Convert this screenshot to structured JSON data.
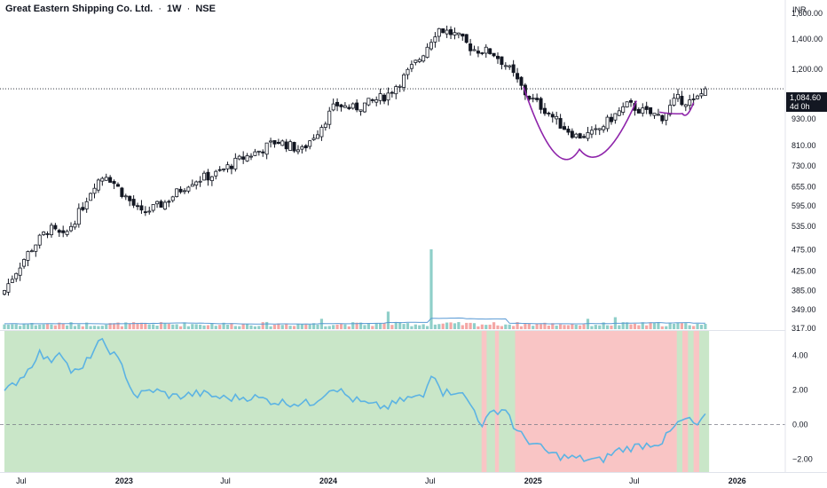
{
  "header": {
    "symbol": "Great Eastern Shipping Co. Ltd.",
    "interval": "1W",
    "exchange": "NSE",
    "separator": "·"
  },
  "price_axis": {
    "currency": "INR",
    "labels": [
      "1,600.00",
      "1,400.00",
      "1,200.00",
      "930.00",
      "810.00",
      "730.00",
      "655.00",
      "595.00",
      "535.00",
      "475.00",
      "425.00",
      "385.00",
      "349.00",
      "317.00"
    ],
    "current_price": "1,084.60",
    "countdown": "4d 0h"
  },
  "oscillator_axis": {
    "labels": [
      "4.00",
      "2.00",
      "0.00",
      "−2.00"
    ]
  },
  "time_axis": {
    "labels": [
      "Jul",
      "2023",
      "Jul",
      "2024",
      "Jul",
      "2025",
      "Jul",
      "2026"
    ]
  },
  "colors": {
    "up": "#26a69a",
    "down": "#ef5350",
    "candle": "#131722",
    "volume_up": "#8fcfc9",
    "volume_down": "#f4a7a5",
    "volume_ma": "#5b9bd5",
    "oscillator_line": "#5cb3e3",
    "positive_zone": "#c9e6c8",
    "negative_zone": "#f9c5c5",
    "pattern": "#8e24aa"
  },
  "chart_data": [
    {
      "type": "candlestick",
      "title": "Great Eastern Shipping Co. Ltd. · 1W · NSE",
      "scale": "log",
      "ylim": [
        317,
        1650
      ],
      "x_range": [
        "2022-06",
        "2026-03"
      ],
      "close_anchors": [
        [
          "2022-06-01",
          385
        ],
        [
          "2022-07-15",
          470
        ],
        [
          "2022-08-20",
          530
        ],
        [
          "2022-09-15",
          505
        ],
        [
          "2022-10-15",
          580
        ],
        [
          "2022-11-10",
          670
        ],
        [
          "2022-11-30",
          700
        ],
        [
          "2022-12-31",
          630
        ],
        [
          "2023-02-01",
          570
        ],
        [
          "2023-03-15",
          605
        ],
        [
          "2023-05-01",
          675
        ],
        [
          "2023-06-15",
          700
        ],
        [
          "2023-08-01",
          760
        ],
        [
          "2023-09-01",
          790
        ],
        [
          "2023-10-01",
          830
        ],
        [
          "2023-11-15",
          790
        ],
        [
          "2023-12-15",
          880
        ],
        [
          "2024-01-15",
          1000
        ],
        [
          "2024-02-15",
          980
        ],
        [
          "2024-03-15",
          1010
        ],
        [
          "2024-04-15",
          1050
        ],
        [
          "2024-05-15",
          1150
        ],
        [
          "2024-06-15",
          1280
        ],
        [
          "2024-07-15",
          1480
        ],
        [
          "2024-08-15",
          1430
        ],
        [
          "2024-09-15",
          1330
        ],
        [
          "2024-10-20",
          1310
        ],
        [
          "2024-11-15",
          1220
        ],
        [
          "2024-12-20",
          1050
        ],
        [
          "2025-01-20",
          980
        ],
        [
          "2025-02-20",
          900
        ],
        [
          "2025-03-20",
          850
        ],
        [
          "2025-04-20",
          860
        ],
        [
          "2025-05-20",
          930
        ],
        [
          "2025-06-20",
          1000
        ],
        [
          "2025-07-20",
          960
        ],
        [
          "2025-08-20",
          940
        ],
        [
          "2025-09-15",
          1030
        ],
        [
          "2025-10-15",
          1010
        ],
        [
          "2025-11-07",
          1084.6
        ]
      ],
      "last_price": 1084.6
    },
    {
      "type": "bar",
      "name": "Volume",
      "spikes": [
        [
          "2024-07-05",
          10
        ],
        [
          "2024-04-20",
          2.2
        ],
        [
          "2023-12-20",
          1.3
        ],
        [
          "2025-05-30",
          1.5
        ],
        [
          "2025-04-10",
          1.3
        ]
      ],
      "note": "relative weekly volume with moving average"
    },
    {
      "type": "line",
      "ylim": [
        -2.7,
        5.3
      ],
      "ticks": [
        4,
        2,
        0,
        -2
      ],
      "zero_line": true,
      "anchors": [
        [
          "2022-06-01",
          1.8
        ],
        [
          "2022-07-15",
          3.2
        ],
        [
          "2022-08-01",
          4.2
        ],
        [
          "2022-08-20",
          3.6
        ],
        [
          "2022-09-10",
          4.4
        ],
        [
          "2022-09-25",
          3.1
        ],
        [
          "2022-10-15",
          3.0
        ],
        [
          "2022-11-05",
          4.2
        ],
        [
          "2022-11-20",
          4.8
        ],
        [
          "2022-12-10",
          4.2
        ],
        [
          "2022-12-31",
          3.2
        ],
        [
          "2023-01-20",
          1.6
        ],
        [
          "2023-02-20",
          2.0
        ],
        [
          "2023-04-01",
          1.6
        ],
        [
          "2023-05-15",
          1.8
        ],
        [
          "2023-07-01",
          1.5
        ],
        [
          "2023-08-15",
          1.6
        ],
        [
          "2023-10-01",
          1.3
        ],
        [
          "2023-12-01",
          1.2
        ],
        [
          "2024-01-10",
          2.2
        ],
        [
          "2024-02-10",
          1.5
        ],
        [
          "2024-03-15",
          1.1
        ],
        [
          "2024-04-15",
          1.0
        ],
        [
          "2024-05-20",
          1.5
        ],
        [
          "2024-06-20",
          1.6
        ],
        [
          "2024-07-05",
          3.2
        ],
        [
          "2024-07-25",
          1.8
        ],
        [
          "2024-08-20",
          2.0
        ],
        [
          "2024-09-15",
          1.0
        ],
        [
          "2024-10-01",
          0.0
        ],
        [
          "2024-10-25",
          0.8
        ],
        [
          "2024-11-15",
          0.9
        ],
        [
          "2024-12-01",
          -0.4
        ],
        [
          "2025-01-01",
          -1.1
        ],
        [
          "2025-02-01",
          -1.7
        ],
        [
          "2025-03-01",
          -1.9
        ],
        [
          "2025-04-01",
          -2.0
        ],
        [
          "2025-05-01",
          -2.1
        ],
        [
          "2025-06-01",
          -1.5
        ],
        [
          "2025-07-15",
          -1.2
        ],
        [
          "2025-08-20",
          -1.0
        ],
        [
          "2025-09-15",
          0.0
        ],
        [
          "2025-10-01",
          0.3
        ],
        [
          "2025-10-25",
          -0.1
        ],
        [
          "2025-11-07",
          0.6
        ]
      ],
      "background_zones": [
        {
          "start": "2022-06-01",
          "end": "2024-10-01",
          "state": "positive"
        },
        {
          "start": "2024-10-01",
          "end": "2024-10-10",
          "state": "negative"
        },
        {
          "start": "2024-10-10",
          "end": "2024-10-25",
          "state": "positive"
        },
        {
          "start": "2024-10-25",
          "end": "2024-11-01",
          "state": "negative"
        },
        {
          "start": "2024-11-01",
          "end": "2024-11-30",
          "state": "positive"
        },
        {
          "start": "2024-11-30",
          "end": "2025-09-15",
          "state": "negative"
        },
        {
          "start": "2025-09-15",
          "end": "2025-09-25",
          "state": "positive"
        },
        {
          "start": "2025-09-25",
          "end": "2025-10-05",
          "state": "negative"
        },
        {
          "start": "2025-10-05",
          "end": "2025-10-15",
          "state": "positive"
        },
        {
          "start": "2025-10-15",
          "end": "2025-10-25",
          "state": "negative"
        },
        {
          "start": "2025-10-25",
          "end": "2025-11-07",
          "state": "positive"
        }
      ]
    }
  ],
  "annotations": {
    "cup_pattern": {
      "start": "2024-12-15",
      "bottom": [
        "2025-03-25",
        795
      ],
      "end": "2025-07-05",
      "end_price": 1020
    },
    "handle_pattern": {
      "start": "2025-08-15",
      "bottom": [
        "2025-09-25",
        955
      ],
      "end": "2025-10-15",
      "end_price": 1010
    }
  }
}
